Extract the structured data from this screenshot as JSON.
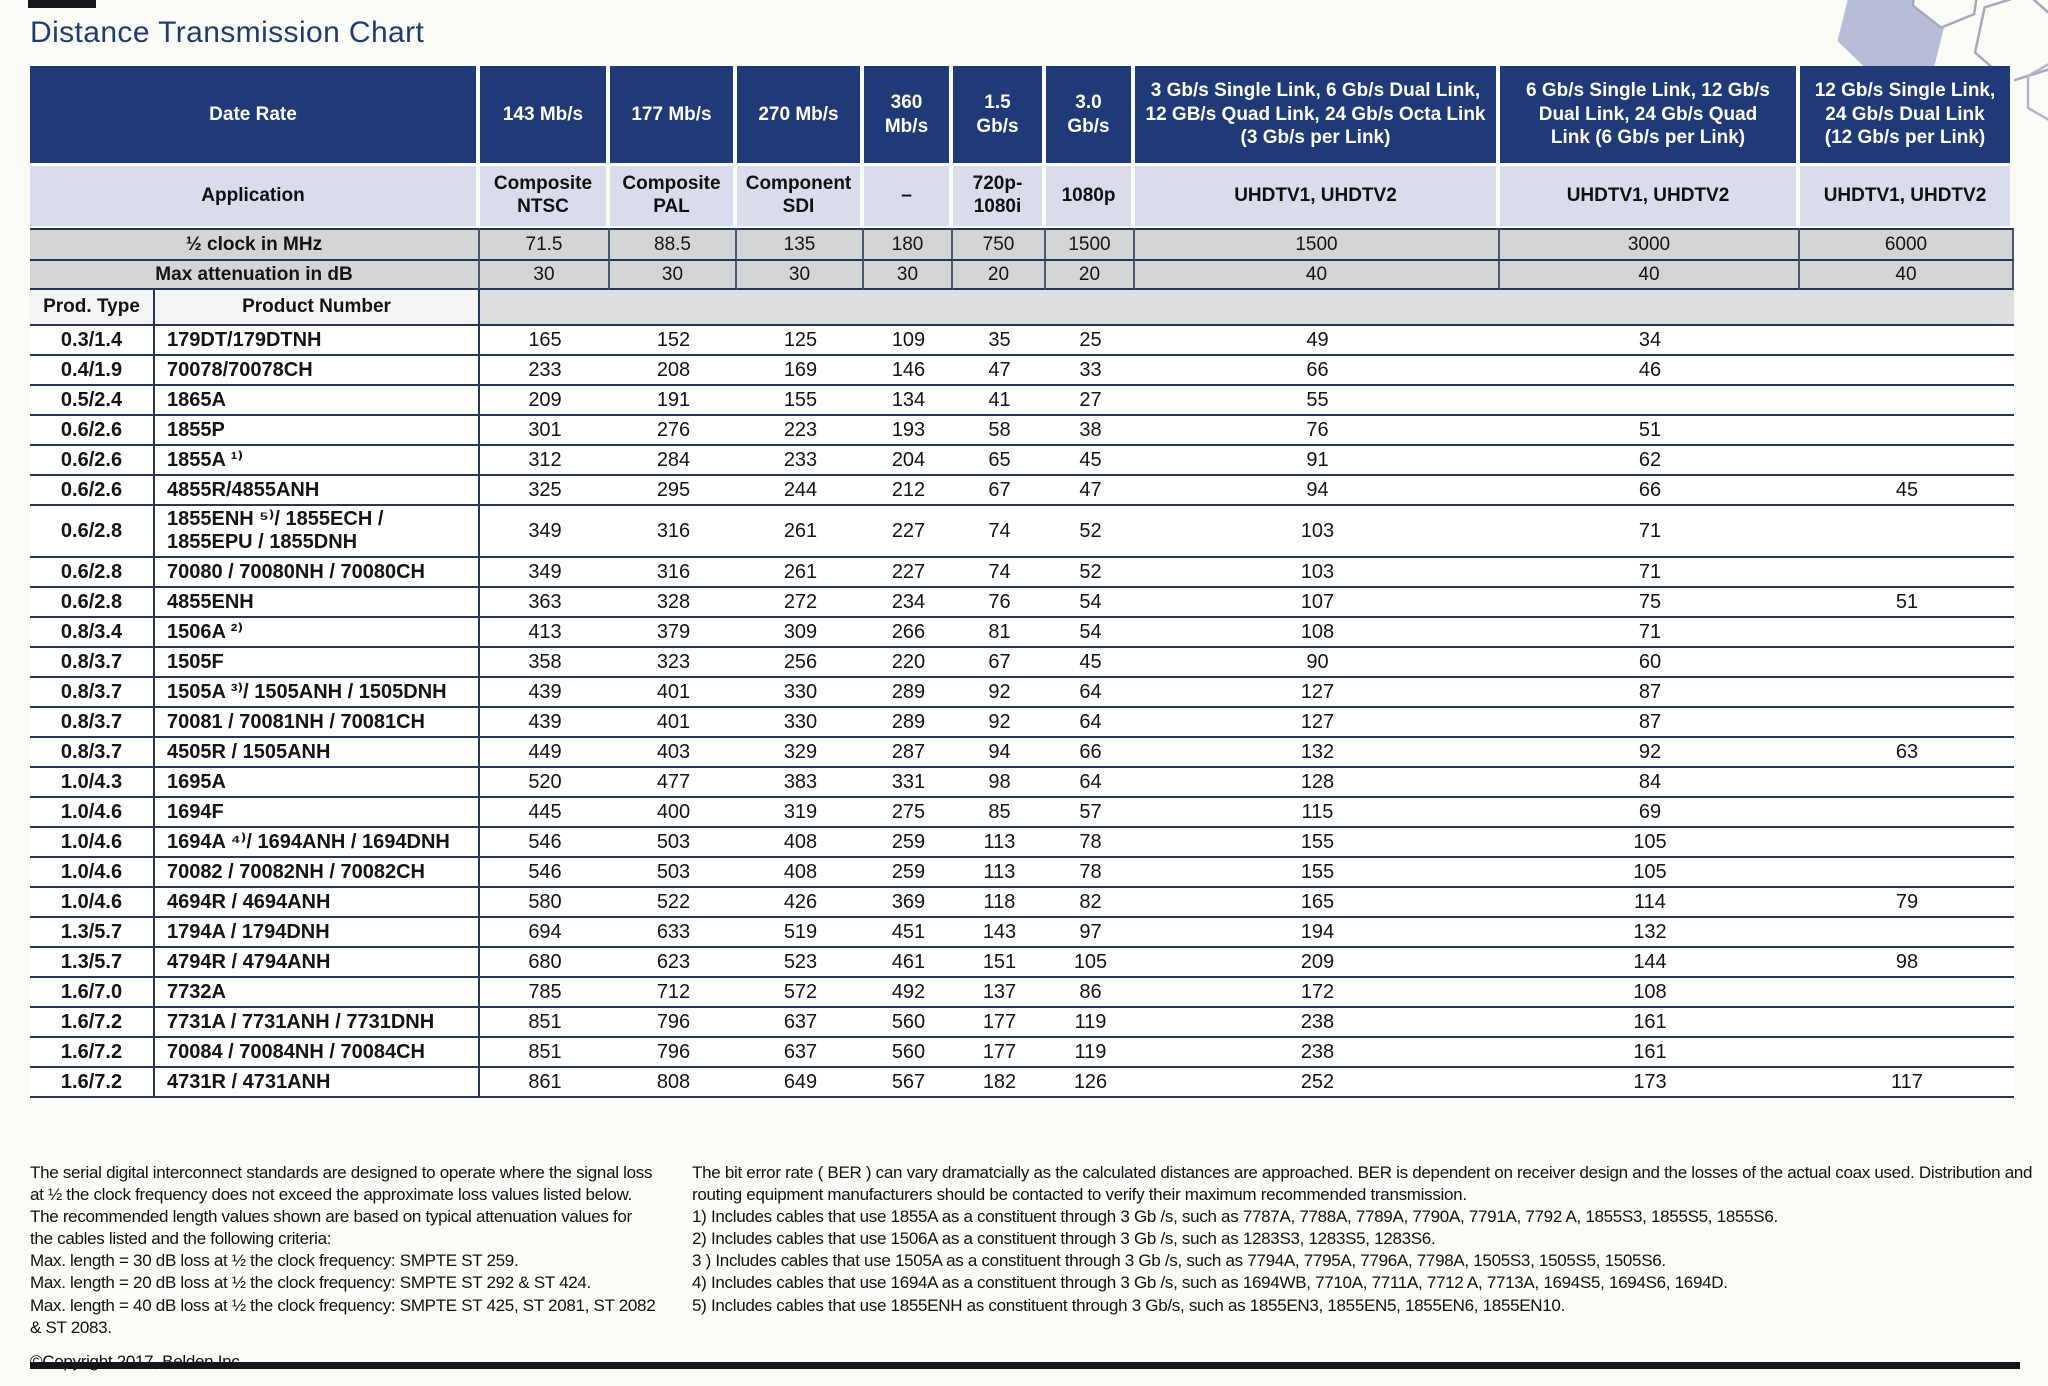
{
  "page": {
    "title": "Distance Transmission Chart"
  },
  "colors": {
    "header_navy": "#1f3a76",
    "line_navy": "#26355c",
    "application_row_bg": "#d9dcea",
    "meta_row_bg": "#d2d4d6",
    "page_bg": "#fbfbf8",
    "bottom_bar": "#14141c",
    "title_color": "#1e3d6e",
    "hex_fill": "#b7bdd6",
    "hex_stroke": "#a3aabc"
  },
  "table": {
    "header": {
      "data_rate_label": "Date Rate",
      "application_label": "Application",
      "clock_label": "½ clock in MHz",
      "attenuation_label": "Max attenuation in dB",
      "prod_type_label": "Prod. Type",
      "product_number_label": "Product Number",
      "rate_columns": [
        {
          "rate": "143 Mb/s",
          "application": "Composite\nNTSC",
          "clock": "71.5",
          "attenuation": "30"
        },
        {
          "rate": "177 Mb/s",
          "application": "Composite\nPAL",
          "clock": "88.5",
          "attenuation": "30"
        },
        {
          "rate": "270 Mb/s",
          "application": "Component\nSDI",
          "clock": "135",
          "attenuation": "30"
        },
        {
          "rate": "360\nMb/s",
          "application": "–",
          "clock": "180",
          "attenuation": "30"
        },
        {
          "rate": "1.5\nGb/s",
          "application": "720p-\n1080i",
          "clock": "750",
          "attenuation": "20"
        },
        {
          "rate": "3.0\nGb/s",
          "application": "1080p",
          "clock": "1500",
          "attenuation": "20"
        },
        {
          "rate": "3 Gb/s Single Link, 6 Gb/s Dual Link,\n12 GB/s Quad Link, 24 Gb/s Octa Link\n(3 Gb/s per Link)",
          "application": "UHDTV1, UHDTV2",
          "clock": "1500",
          "attenuation": "40"
        },
        {
          "rate": "6 Gb/s Single Link, 12 Gb/s\nDual Link, 24 Gb/s Quad\nLink (6 Gb/s per Link)",
          "application": "UHDTV1, UHDTV2",
          "clock": "3000",
          "attenuation": "40"
        },
        {
          "rate": "12 Gb/s Single Link,\n24 Gb/s Dual Link\n(12 Gb/s per Link)",
          "application": "UHDTV1, UHDTV2",
          "clock": "6000",
          "attenuation": "40"
        }
      ]
    },
    "rows": [
      {
        "prod_type": "0.3/1.4",
        "product": "179DT/179DTNH",
        "values": [
          "165",
          "152",
          "125",
          "109",
          "35",
          "25",
          "49",
          "34",
          ""
        ]
      },
      {
        "prod_type": "0.4/1.9",
        "product": "70078/70078CH",
        "values": [
          "233",
          "208",
          "169",
          "146",
          "47",
          "33",
          "66",
          "46",
          ""
        ]
      },
      {
        "prod_type": "0.5/2.4",
        "product": "1865A",
        "values": [
          "209",
          "191",
          "155",
          "134",
          "41",
          "27",
          "55",
          "",
          ""
        ]
      },
      {
        "prod_type": "0.6/2.6",
        "product": "1855P",
        "values": [
          "301",
          "276",
          "223",
          "193",
          "58",
          "38",
          "76",
          "51",
          ""
        ]
      },
      {
        "prod_type": "0.6/2.6",
        "product": "1855A ¹⁾",
        "values": [
          "312",
          "284",
          "233",
          "204",
          "65",
          "45",
          "91",
          "62",
          ""
        ]
      },
      {
        "prod_type": "0.6/2.6",
        "product": "4855R/4855ANH",
        "values": [
          "325",
          "295",
          "244",
          "212",
          "67",
          "47",
          "94",
          "66",
          "45"
        ]
      },
      {
        "prod_type": "0.6/2.8",
        "product": "1855ENH ⁵⁾/ 1855ECH /\n1855EPU / 1855DNH",
        "values": [
          "349",
          "316",
          "261",
          "227",
          "74",
          "52",
          "103",
          "71",
          ""
        ]
      },
      {
        "prod_type": "0.6/2.8",
        "product": "70080 / 70080NH / 70080CH",
        "values": [
          "349",
          "316",
          "261",
          "227",
          "74",
          "52",
          "103",
          "71",
          ""
        ]
      },
      {
        "prod_type": "0.6/2.8",
        "product": "4855ENH",
        "values": [
          "363",
          "328",
          "272",
          "234",
          "76",
          "54",
          "107",
          "75",
          "51"
        ]
      },
      {
        "prod_type": "0.8/3.4",
        "product": "1506A ²⁾",
        "values": [
          "413",
          "379",
          "309",
          "266",
          "81",
          "54",
          "108",
          "71",
          ""
        ]
      },
      {
        "prod_type": "0.8/3.7",
        "product": "1505F",
        "values": [
          "358",
          "323",
          "256",
          "220",
          "67",
          "45",
          "90",
          "60",
          ""
        ]
      },
      {
        "prod_type": "0.8/3.7",
        "product": "1505A ³⁾/ 1505ANH / 1505DNH",
        "values": [
          "439",
          "401",
          "330",
          "289",
          "92",
          "64",
          "127",
          "87",
          ""
        ]
      },
      {
        "prod_type": "0.8/3.7",
        "product": "70081 / 70081NH / 70081CH",
        "values": [
          "439",
          "401",
          "330",
          "289",
          "92",
          "64",
          "127",
          "87",
          ""
        ]
      },
      {
        "prod_type": "0.8/3.7",
        "product": "4505R / 1505ANH",
        "values": [
          "449",
          "403",
          "329",
          "287",
          "94",
          "66",
          "132",
          "92",
          "63"
        ]
      },
      {
        "prod_type": "1.0/4.3",
        "product": "1695A",
        "values": [
          "520",
          "477",
          "383",
          "331",
          "98",
          "64",
          "128",
          "84",
          ""
        ]
      },
      {
        "prod_type": "1.0/4.6",
        "product": "1694F",
        "values": [
          "445",
          "400",
          "319",
          "275",
          "85",
          "57",
          "115",
          "69",
          ""
        ]
      },
      {
        "prod_type": "1.0/4.6",
        "product": "1694A ⁴⁾/ 1694ANH / 1694DNH",
        "values": [
          "546",
          "503",
          "408",
          "259",
          "113",
          "78",
          "155",
          "105",
          ""
        ]
      },
      {
        "prod_type": "1.0/4.6",
        "product": "70082 / 70082NH / 70082CH",
        "values": [
          "546",
          "503",
          "408",
          "259",
          "113",
          "78",
          "155",
          "105",
          ""
        ]
      },
      {
        "prod_type": "1.0/4.6",
        "product": "4694R / 4694ANH",
        "values": [
          "580",
          "522",
          "426",
          "369",
          "118",
          "82",
          "165",
          "114",
          "79"
        ]
      },
      {
        "prod_type": "1.3/5.7",
        "product": "1794A / 1794DNH",
        "values": [
          "694",
          "633",
          "519",
          "451",
          "143",
          "97",
          "194",
          "132",
          ""
        ]
      },
      {
        "prod_type": "1.3/5.7",
        "product": "4794R / 4794ANH",
        "values": [
          "680",
          "623",
          "523",
          "461",
          "151",
          "105",
          "209",
          "144",
          "98"
        ]
      },
      {
        "prod_type": "1.6/7.0",
        "product": "7732A",
        "values": [
          "785",
          "712",
          "572",
          "492",
          "137",
          "86",
          "172",
          "108",
          ""
        ]
      },
      {
        "prod_type": "1.6/7.2",
        "product": "7731A / 7731ANH / 7731DNH",
        "values": [
          "851",
          "796",
          "637",
          "560",
          "177",
          "119",
          "238",
          "161",
          ""
        ]
      },
      {
        "prod_type": "1.6/7.2",
        "product": "70084 / 70084NH / 70084CH",
        "values": [
          "851",
          "796",
          "637",
          "560",
          "177",
          "119",
          "238",
          "161",
          ""
        ]
      },
      {
        "prod_type": "1.6/7.2",
        "product": "4731R / 4731ANH",
        "values": [
          "861",
          "808",
          "649",
          "567",
          "182",
          "126",
          "252",
          "173",
          "117"
        ]
      }
    ]
  },
  "footnotes": {
    "left": {
      "intro": "The serial digital interconnect standards are designed to operate where the signal loss at ½ the clock frequency does not exceed the approximate loss values listed below. The recommended length values shown are based on typical attenuation values for the cables listed and the following criteria:",
      "criteria": [
        "Max. length = 30 dB loss at ½ the clock frequency: SMPTE ST 259.",
        "Max. length = 20 dB loss at ½ the clock frequency: SMPTE ST 292 & ST 424.",
        "Max. length = 40 dB loss at ½ the clock frequency: SMPTE ST 425, ST 2081, ST 2082 & ST 2083."
      ],
      "copyright": "©Copyright 2017, Belden Inc."
    },
    "right": {
      "intro": "The bit error rate ( BER ) can vary dramatcially as the calculated distances are approached. BER is dependent on receiver design and the losses of the actual coax used. Distribution and routing equipment manufacturers should be contacted to verify their maximum recommended transmission.",
      "notes": [
        "1) Includes cables that use 1855A as a constituent through 3 Gb /s, such as 7787A, 7788A, 7789A, 7790A, 7791A, 7792 A, 1855S3, 1855S5, 1855S6.",
        "2) Includes cables that use 1506A as a constituent through 3 Gb /s, such as 1283S3, 1283S5, 1283S6.",
        "3 ) Includes cables that use 1505A as a constituent through 3 Gb /s, such as 7794A, 7795A, 7796A, 7798A, 1505S3, 1505S5, 1505S6.",
        "4) Includes cables that use 1694A as a constituent through 3 Gb /s, such as 1694WB, 7710A, 7711A, 7712 A, 7713A, 1694S5, 1694S6, 1694D.",
        "5) Includes cables that use 1855ENH as constituent through 3 Gb/s, such as 1855EN3, 1855EN5, 1855EN6, 1855EN10."
      ]
    }
  }
}
